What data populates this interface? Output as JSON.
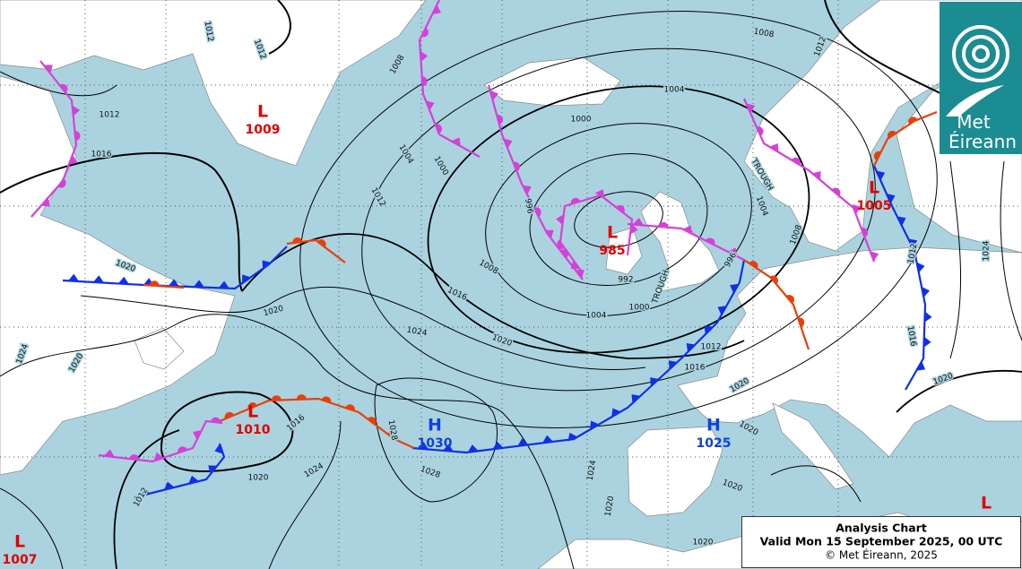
{
  "title_box": {
    "title": "Analysis Chart",
    "valid": "Valid Mon 15 September 2025, 00 UTC",
    "copyright": "© Met Éireann, 2025"
  },
  "logo": {
    "line1": "Met",
    "line2": "Éireann"
  },
  "pressure_centres": [
    {
      "kind": "L",
      "value": 1009
    },
    {
      "kind": "L",
      "value": 985
    },
    {
      "kind": "L",
      "value": 1005
    },
    {
      "kind": "L",
      "value": 1010
    },
    {
      "kind": "H",
      "value": 1030
    },
    {
      "kind": "H",
      "value": 1025
    },
    {
      "kind": "L",
      "value": 1007
    },
    {
      "kind": "L"
    }
  ],
  "isobar_labels": [
    "1012",
    "1012",
    "1012",
    "1016",
    "1020",
    "1024",
    "1020",
    "1008",
    "1004",
    "1000",
    "1012",
    "996",
    "1008",
    "1016",
    "1020",
    "1024",
    "1020",
    "1000",
    "1004",
    "1008",
    "1012",
    "1004",
    "1008",
    "996",
    "992",
    "1000",
    "1004",
    "1012",
    "1016",
    "1020",
    "1016",
    "1012",
    "1024",
    "1020",
    "1020",
    "1020",
    "1020",
    "1024",
    "1020",
    "1028",
    "1028",
    "1024",
    "1020",
    "1016",
    "1012"
  ],
  "trough_labels": [
    "TROUGH",
    "TROUGH"
  ]
}
